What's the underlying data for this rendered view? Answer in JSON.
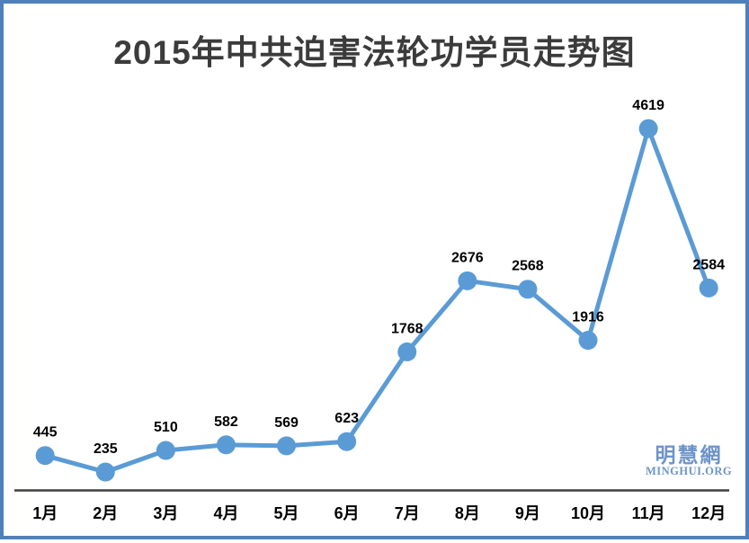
{
  "chart_data": {
    "type": "line",
    "title": "2015年中共迫害法轮功学员走势图",
    "categories": [
      "1月",
      "2月",
      "3月",
      "4月",
      "5月",
      "6月",
      "7月",
      "8月",
      "9月",
      "10月",
      "11月",
      "12月"
    ],
    "values": [
      445,
      235,
      510,
      582,
      569,
      623,
      1768,
      2676,
      2568,
      1916,
      4619,
      2584
    ],
    "xlabel": "",
    "ylabel": "",
    "ylim": [
      0,
      5000
    ],
    "grid": false,
    "legend": "none",
    "data_labels_shown": true,
    "line_color": "#5B9BD5",
    "marker_color": "#5B9BD5",
    "axis_color": "#3f3f3f",
    "label_color": "#000000"
  },
  "watermark": {
    "cn": "明慧網",
    "en": "MINGHUI.ORG"
  },
  "frame": {
    "border_color": "#4E80BC",
    "background": "#FFFFFF"
  }
}
